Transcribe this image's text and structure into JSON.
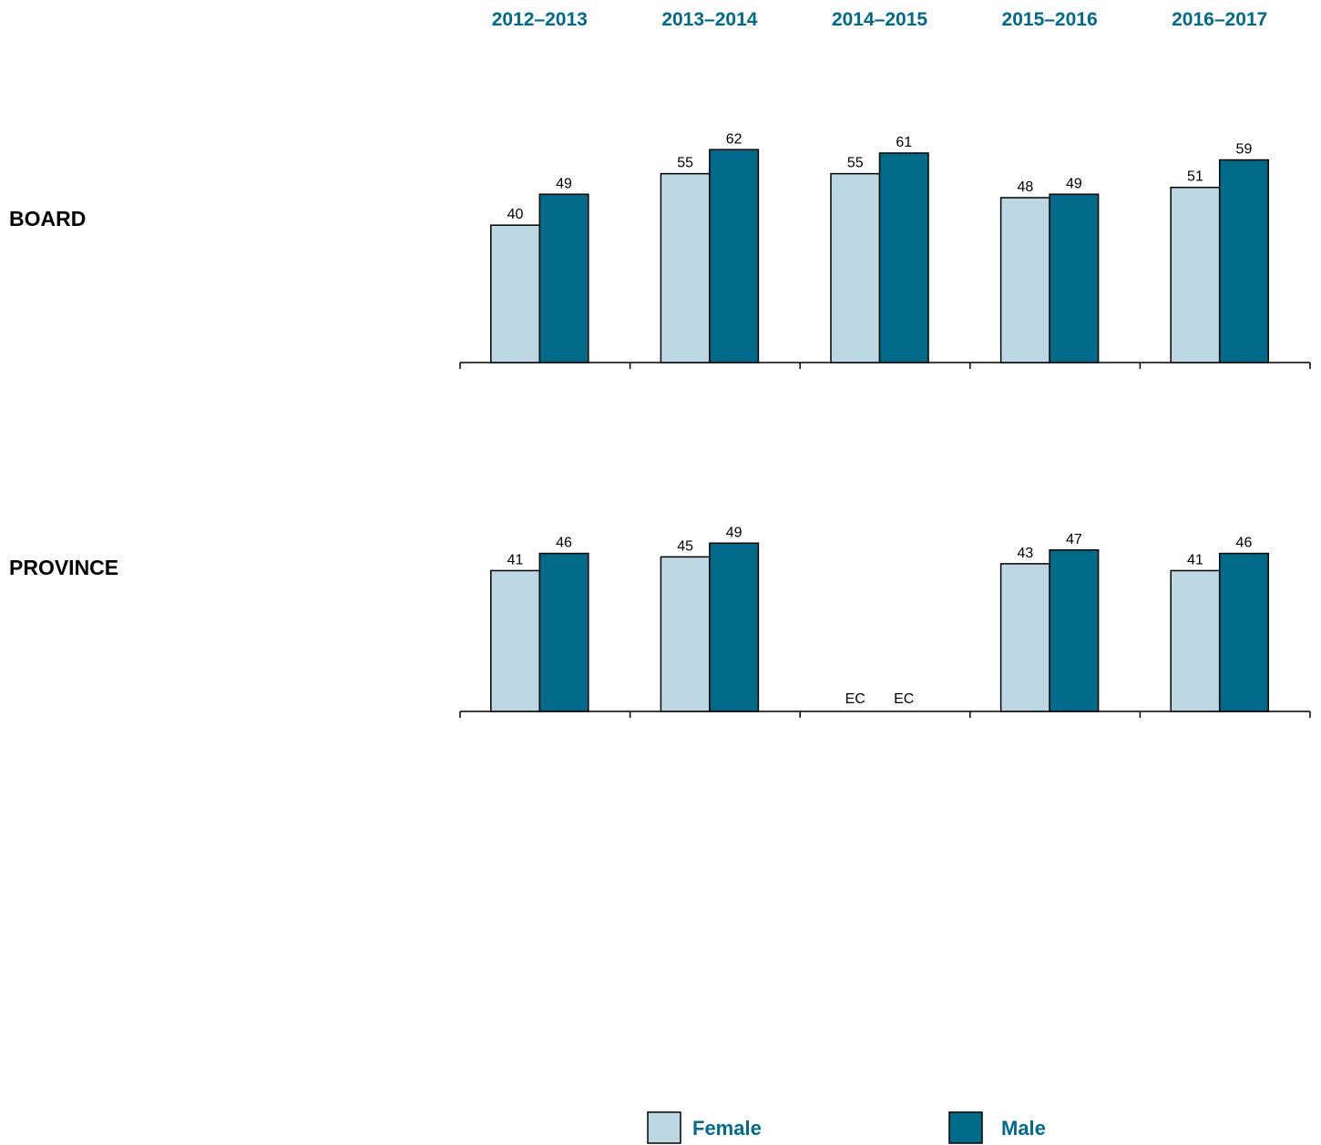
{
  "colors": {
    "female": "#bcd8e3",
    "male": "#006a8a",
    "header_text": "#006a8a",
    "stroke": "#000000"
  },
  "chart_data": {
    "type": "bar",
    "categories": [
      "2012–2013",
      "2013–2014",
      "2014–2015",
      "2015–2016",
      "2016–2017"
    ],
    "ylim": [
      0,
      100
    ],
    "legend_position": "bottom-center",
    "grid": false,
    "legend": [
      {
        "key": "female",
        "label": "Female"
      },
      {
        "key": "male",
        "label": "Male"
      }
    ],
    "groups": [
      {
        "name": "BOARD",
        "series": [
          {
            "key": "female",
            "values": [
              40,
              55,
              55,
              48,
              51
            ],
            "labels": [
              "40",
              "55",
              "55",
              "48",
              "51"
            ]
          },
          {
            "key": "male",
            "values": [
              49,
              62,
              61,
              49,
              59
            ],
            "labels": [
              "49",
              "62",
              "61",
              "49",
              "59"
            ]
          }
        ]
      },
      {
        "name": "PROVINCE",
        "series": [
          {
            "key": "female",
            "values": [
              41,
              45,
              null,
              43,
              41
            ],
            "labels": [
              "41",
              "45",
              "EC",
              "43",
              "41"
            ]
          },
          {
            "key": "male",
            "values": [
              46,
              49,
              null,
              47,
              46
            ],
            "labels": [
              "46",
              "49",
              "EC",
              "47",
              "46"
            ]
          }
        ]
      }
    ]
  }
}
